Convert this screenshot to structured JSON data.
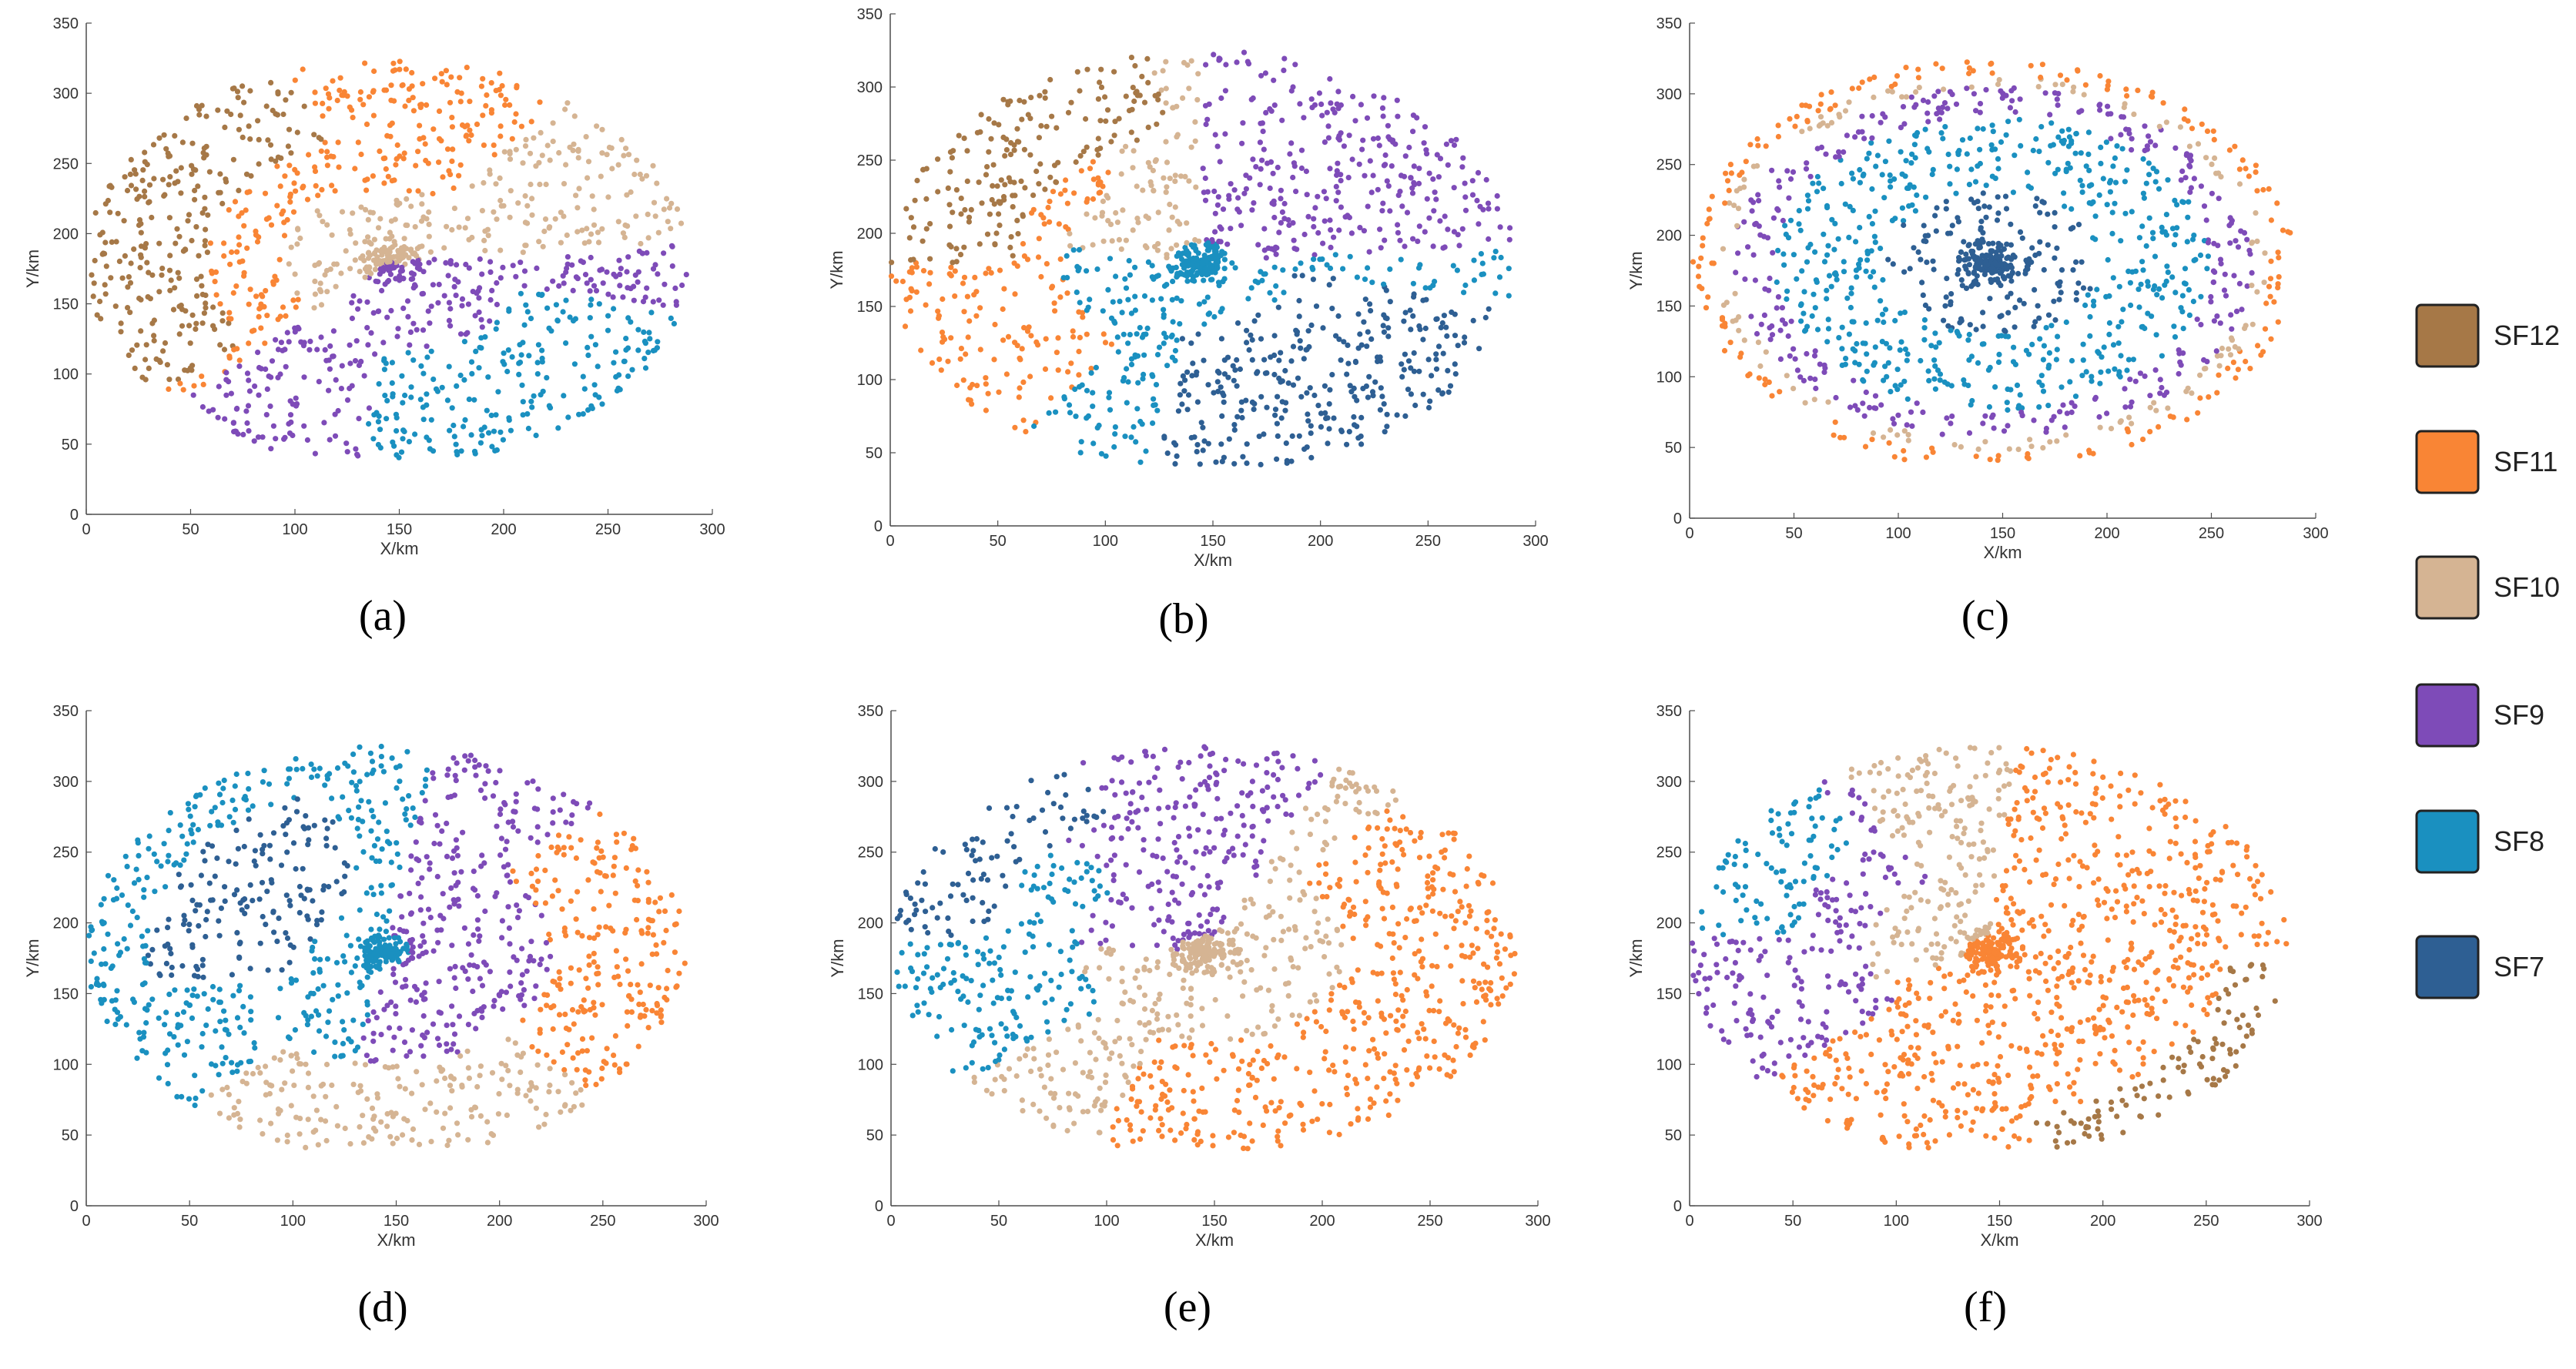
{
  "figure": {
    "title": "",
    "legend": {
      "placement": "right",
      "entries": [
        {
          "key": "SF12",
          "label": "SF12",
          "color": "#A67847"
        },
        {
          "key": "SF11",
          "label": "SF11",
          "color": "#F98535"
        },
        {
          "key": "SF10",
          "label": "SF10",
          "color": "#D5B493"
        },
        {
          "key": "SF9",
          "label": "SF9",
          "color": "#7E4BB8"
        },
        {
          "key": "SF8",
          "label": "SF8",
          "color": "#1A90C0"
        },
        {
          "key": "SF7",
          "label": "SF7",
          "color": "#2E5F93"
        }
      ]
    }
  },
  "chart_data": [
    {
      "type": "scatter",
      "panel_label": "(a)",
      "xlabel": "X/km",
      "ylabel": "Y/km",
      "xlim": [
        0,
        300
      ],
      "ylim": [
        0,
        350
      ],
      "xticks": [
        0,
        50,
        100,
        150,
        200,
        250,
        300
      ],
      "yticks": [
        0,
        50,
        100,
        150,
        200,
        250,
        300,
        350
      ],
      "center": [
        145,
        180
      ],
      "rx": 145,
      "ry": 145,
      "description_values": {
        "gateway_center": [
          145,
          180
        ],
        "region": "ellipse x 0-290, y 40-325"
      },
      "series": [
        {
          "name": "SF12",
          "dominant_direction": "far west / north-west"
        },
        {
          "name": "SF11",
          "dominant_direction": "west and north"
        },
        {
          "name": "SF10",
          "dominant_direction": "near centre and north-east"
        },
        {
          "name": "SF9",
          "dominant_direction": "east / south"
        },
        {
          "name": "SF8",
          "dominant_direction": "far south-east"
        }
      ],
      "pattern": "rotational"
    },
    {
      "type": "scatter",
      "panel_label": "(b)",
      "xlabel": "X/km",
      "ylabel": "Y/km",
      "xlim": [
        0,
        300
      ],
      "ylim": [
        0,
        350
      ],
      "xticks": [
        0,
        50,
        100,
        150,
        200,
        250,
        300
      ],
      "yticks": [
        0,
        50,
        100,
        150,
        200,
        250,
        300,
        350
      ],
      "center": [
        145,
        180
      ],
      "rx": 145,
      "ry": 145,
      "series": [
        {
          "name": "SF12",
          "dominant_direction": "far north-west"
        },
        {
          "name": "SF11",
          "dominant_direction": "west"
        },
        {
          "name": "SF10",
          "dominant_direction": "north-west"
        },
        {
          "name": "SF9",
          "dominant_direction": "centre and north-east"
        },
        {
          "name": "SF8",
          "dominant_direction": "centre and south"
        },
        {
          "name": "SF7",
          "dominant_direction": "south-east"
        }
      ],
      "pattern": "rotational"
    },
    {
      "type": "scatter",
      "panel_label": "(c)",
      "xlabel": "X/km",
      "ylabel": "Y/km",
      "xlim": [
        0,
        300
      ],
      "ylim": [
        0,
        350
      ],
      "xticks": [
        0,
        50,
        100,
        150,
        200,
        250,
        300
      ],
      "yticks": [
        0,
        50,
        100,
        150,
        200,
        250,
        300,
        350
      ],
      "center": [
        145,
        180
      ],
      "rx": 145,
      "ry": 145,
      "series": [
        {
          "name": "SF7",
          "distance_range": "0-0.35"
        },
        {
          "name": "SF8",
          "distance_range": "0.35-0.72"
        },
        {
          "name": "SF9",
          "distance_range": "0.72-0.86"
        },
        {
          "name": "SF10",
          "distance_range": "0.86-0.92"
        },
        {
          "name": "SF11",
          "distance_range": "0.92-1.0"
        }
      ],
      "pattern": "concentric"
    },
    {
      "type": "scatter",
      "panel_label": "(d)",
      "xlabel": "X/km",
      "ylabel": "Y/km",
      "xlim": [
        0,
        300
      ],
      "ylim": [
        0,
        350
      ],
      "xticks": [
        0,
        50,
        100,
        150,
        200,
        250,
        300
      ],
      "yticks": [
        0,
        50,
        100,
        150,
        200,
        250,
        300,
        350
      ],
      "center": [
        145,
        180
      ],
      "rx": 145,
      "ry": 145,
      "series": [
        {
          "name": "SF7",
          "dominant_direction": "north-west"
        },
        {
          "name": "SF8",
          "dominant_direction": "centre / west"
        },
        {
          "name": "SF9",
          "dominant_direction": "east / south"
        },
        {
          "name": "SF10",
          "dominant_direction": "south / east"
        },
        {
          "name": "SF11",
          "dominant_direction": "far east"
        }
      ],
      "pattern": "rotational"
    },
    {
      "type": "scatter",
      "panel_label": "(e)",
      "xlabel": "X/km",
      "ylabel": "Y/km",
      "xlim": [
        0,
        300
      ],
      "ylim": [
        0,
        350
      ],
      "xticks": [
        0,
        50,
        100,
        150,
        200,
        250,
        300
      ],
      "yticks": [
        0,
        50,
        100,
        150,
        200,
        250,
        300,
        350
      ],
      "center": [
        145,
        180
      ],
      "rx": 145,
      "ry": 145,
      "series": [
        {
          "name": "SF7",
          "dominant_direction": "far north-west"
        },
        {
          "name": "SF8",
          "dominant_direction": "west"
        },
        {
          "name": "SF9",
          "dominant_direction": "centre / north"
        },
        {
          "name": "SF10",
          "dominant_direction": "centre and south"
        },
        {
          "name": "SF11",
          "dominant_direction": "east and south"
        }
      ],
      "pattern": "rotational"
    },
    {
      "type": "scatter",
      "panel_label": "(f)",
      "xlabel": "X/km",
      "ylabel": "Y/km",
      "xlim": [
        0,
        300
      ],
      "ylim": [
        0,
        350
      ],
      "xticks": [
        0,
        50,
        100,
        150,
        200,
        250,
        300
      ],
      "yticks": [
        0,
        50,
        100,
        150,
        200,
        250,
        300,
        350
      ],
      "center": [
        145,
        180
      ],
      "rx": 145,
      "ry": 145,
      "series": [
        {
          "name": "SF8",
          "dominant_direction": "far north-west"
        },
        {
          "name": "SF9",
          "dominant_direction": "west / north"
        },
        {
          "name": "SF10",
          "dominant_direction": "centre / west"
        },
        {
          "name": "SF11",
          "dominant_direction": "centre and east / south"
        },
        {
          "name": "SF12",
          "dominant_direction": "far south-east"
        }
      ],
      "pattern": "rotational"
    }
  ]
}
